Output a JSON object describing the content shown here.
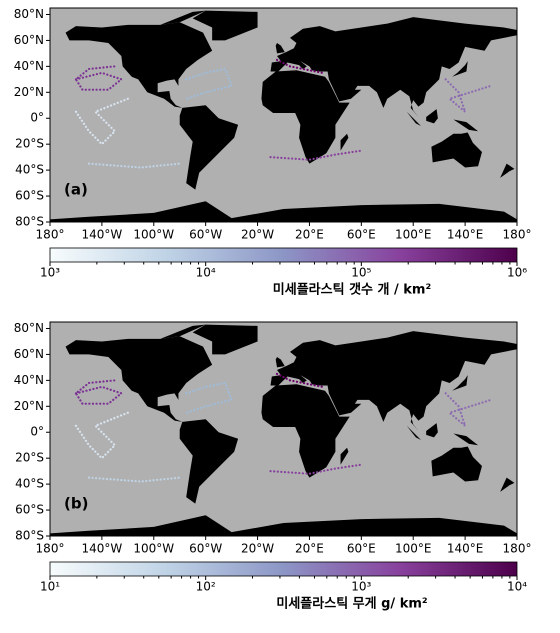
{
  "panels": [
    {
      "label": "(a)",
      "lonlim": [
        -180,
        180
      ],
      "latlim": [
        -80,
        85
      ],
      "lat_ticks": [
        {
          "value": 80,
          "label": "80°N"
        },
        {
          "value": 60,
          "label": "60°N"
        },
        {
          "value": 40,
          "label": "40°N"
        },
        {
          "value": 20,
          "label": "20°N"
        },
        {
          "value": 0,
          "label": "0°"
        },
        {
          "value": -20,
          "label": "20°S"
        },
        {
          "value": -40,
          "label": "40°S"
        },
        {
          "value": -60,
          "label": "60°S"
        },
        {
          "value": -80,
          "label": "80°S"
        }
      ],
      "lon_ticks": [
        {
          "value": -180,
          "label": "180°"
        },
        {
          "value": -140,
          "label": "140°W"
        },
        {
          "value": -100,
          "label": "100°W"
        },
        {
          "value": -60,
          "label": "60°W"
        },
        {
          "value": -20,
          "label": "20°W"
        },
        {
          "value": 20,
          "label": "20°E"
        },
        {
          "value": 60,
          "label": "60°E"
        },
        {
          "value": 100,
          "label": "100°E"
        },
        {
          "value": 140,
          "label": "140°E"
        },
        {
          "value": 180,
          "label": "180°"
        }
      ],
      "colorbar": {
        "title": "미세플라스틱 갯수  개 / km²",
        "scale": "log",
        "lim": [
          1000,
          1000000
        ],
        "ticks": [
          {
            "value": 1000,
            "label": "10³"
          },
          {
            "value": 10000,
            "label": "10⁴"
          },
          {
            "value": 100000,
            "label": "10⁵"
          },
          {
            "value": 1000000,
            "label": "10⁶"
          }
        ]
      }
    },
    {
      "label": "(b)",
      "lonlim": [
        -180,
        180
      ],
      "latlim": [
        -80,
        85
      ],
      "lat_ticks": [
        {
          "value": 80,
          "label": "80°N"
        },
        {
          "value": 60,
          "label": "60°N"
        },
        {
          "value": 40,
          "label": "40°N"
        },
        {
          "value": 20,
          "label": "20°N"
        },
        {
          "value": 0,
          "label": "0°"
        },
        {
          "value": -20,
          "label": "20°S"
        },
        {
          "value": -40,
          "label": "40°S"
        },
        {
          "value": -60,
          "label": "60°S"
        },
        {
          "value": -80,
          "label": "80°S"
        }
      ],
      "lon_ticks": [
        {
          "value": -180,
          "label": "180°"
        },
        {
          "value": -140,
          "label": "140°W"
        },
        {
          "value": -100,
          "label": "100°W"
        },
        {
          "value": -60,
          "label": "60°W"
        },
        {
          "value": -20,
          "label": "20°W"
        },
        {
          "value": 20,
          "label": "20°E"
        },
        {
          "value": 60,
          "label": "60°E"
        },
        {
          "value": 100,
          "label": "100°E"
        },
        {
          "value": 140,
          "label": "140°E"
        },
        {
          "value": 180,
          "label": "180°"
        }
      ],
      "colorbar": {
        "title": "미세플라스틱 무게  g/ km²",
        "scale": "log",
        "lim": [
          10,
          10000
        ],
        "ticks": [
          {
            "value": 10,
            "label": "10¹"
          },
          {
            "value": 100,
            "label": "10²"
          },
          {
            "value": 1000,
            "label": "10³"
          },
          {
            "value": 10000,
            "label": "10⁴"
          }
        ]
      }
    }
  ]
}
